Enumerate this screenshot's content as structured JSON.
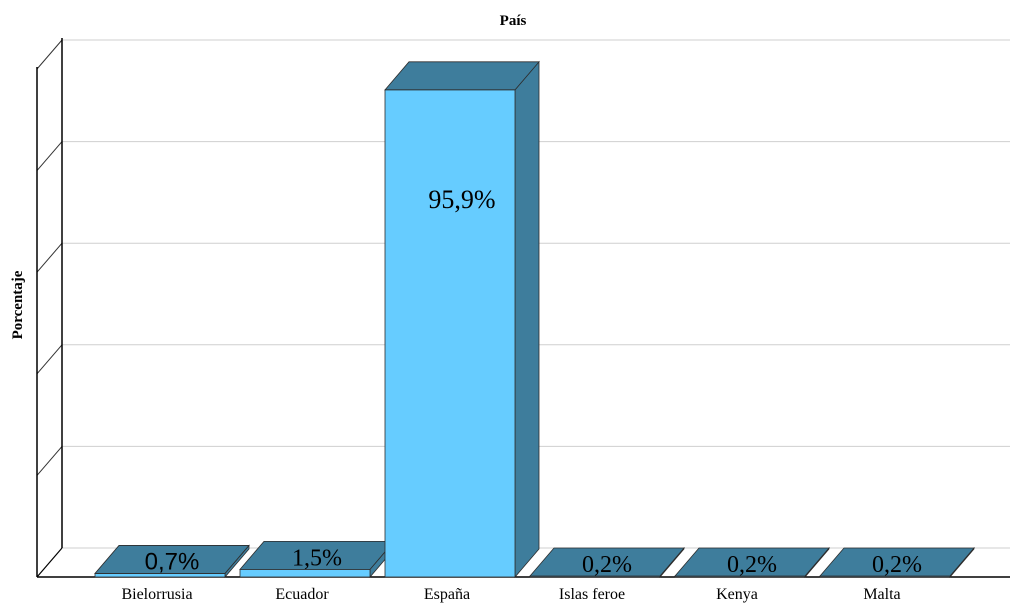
{
  "chart_data": {
    "type": "bar",
    "title": "País",
    "ylabel": "Porcentaje",
    "xlabel": "",
    "categories": [
      "Bielorrusia",
      "Ecuador",
      "España",
      "Islas feroe",
      "Kenya",
      "Malta"
    ],
    "values": [
      0.7,
      1.5,
      95.9,
      0.2,
      0.2,
      0.2
    ],
    "data_labels": [
      "0,7%",
      "1,5%",
      "95,9%",
      "0,2%",
      "0,2%",
      "0,2%"
    ],
    "ylim": [
      0,
      100
    ],
    "grid": true,
    "colors": {
      "front": "#66ccff",
      "side": "#3e7d9c",
      "top": "#3e7d9c"
    }
  }
}
